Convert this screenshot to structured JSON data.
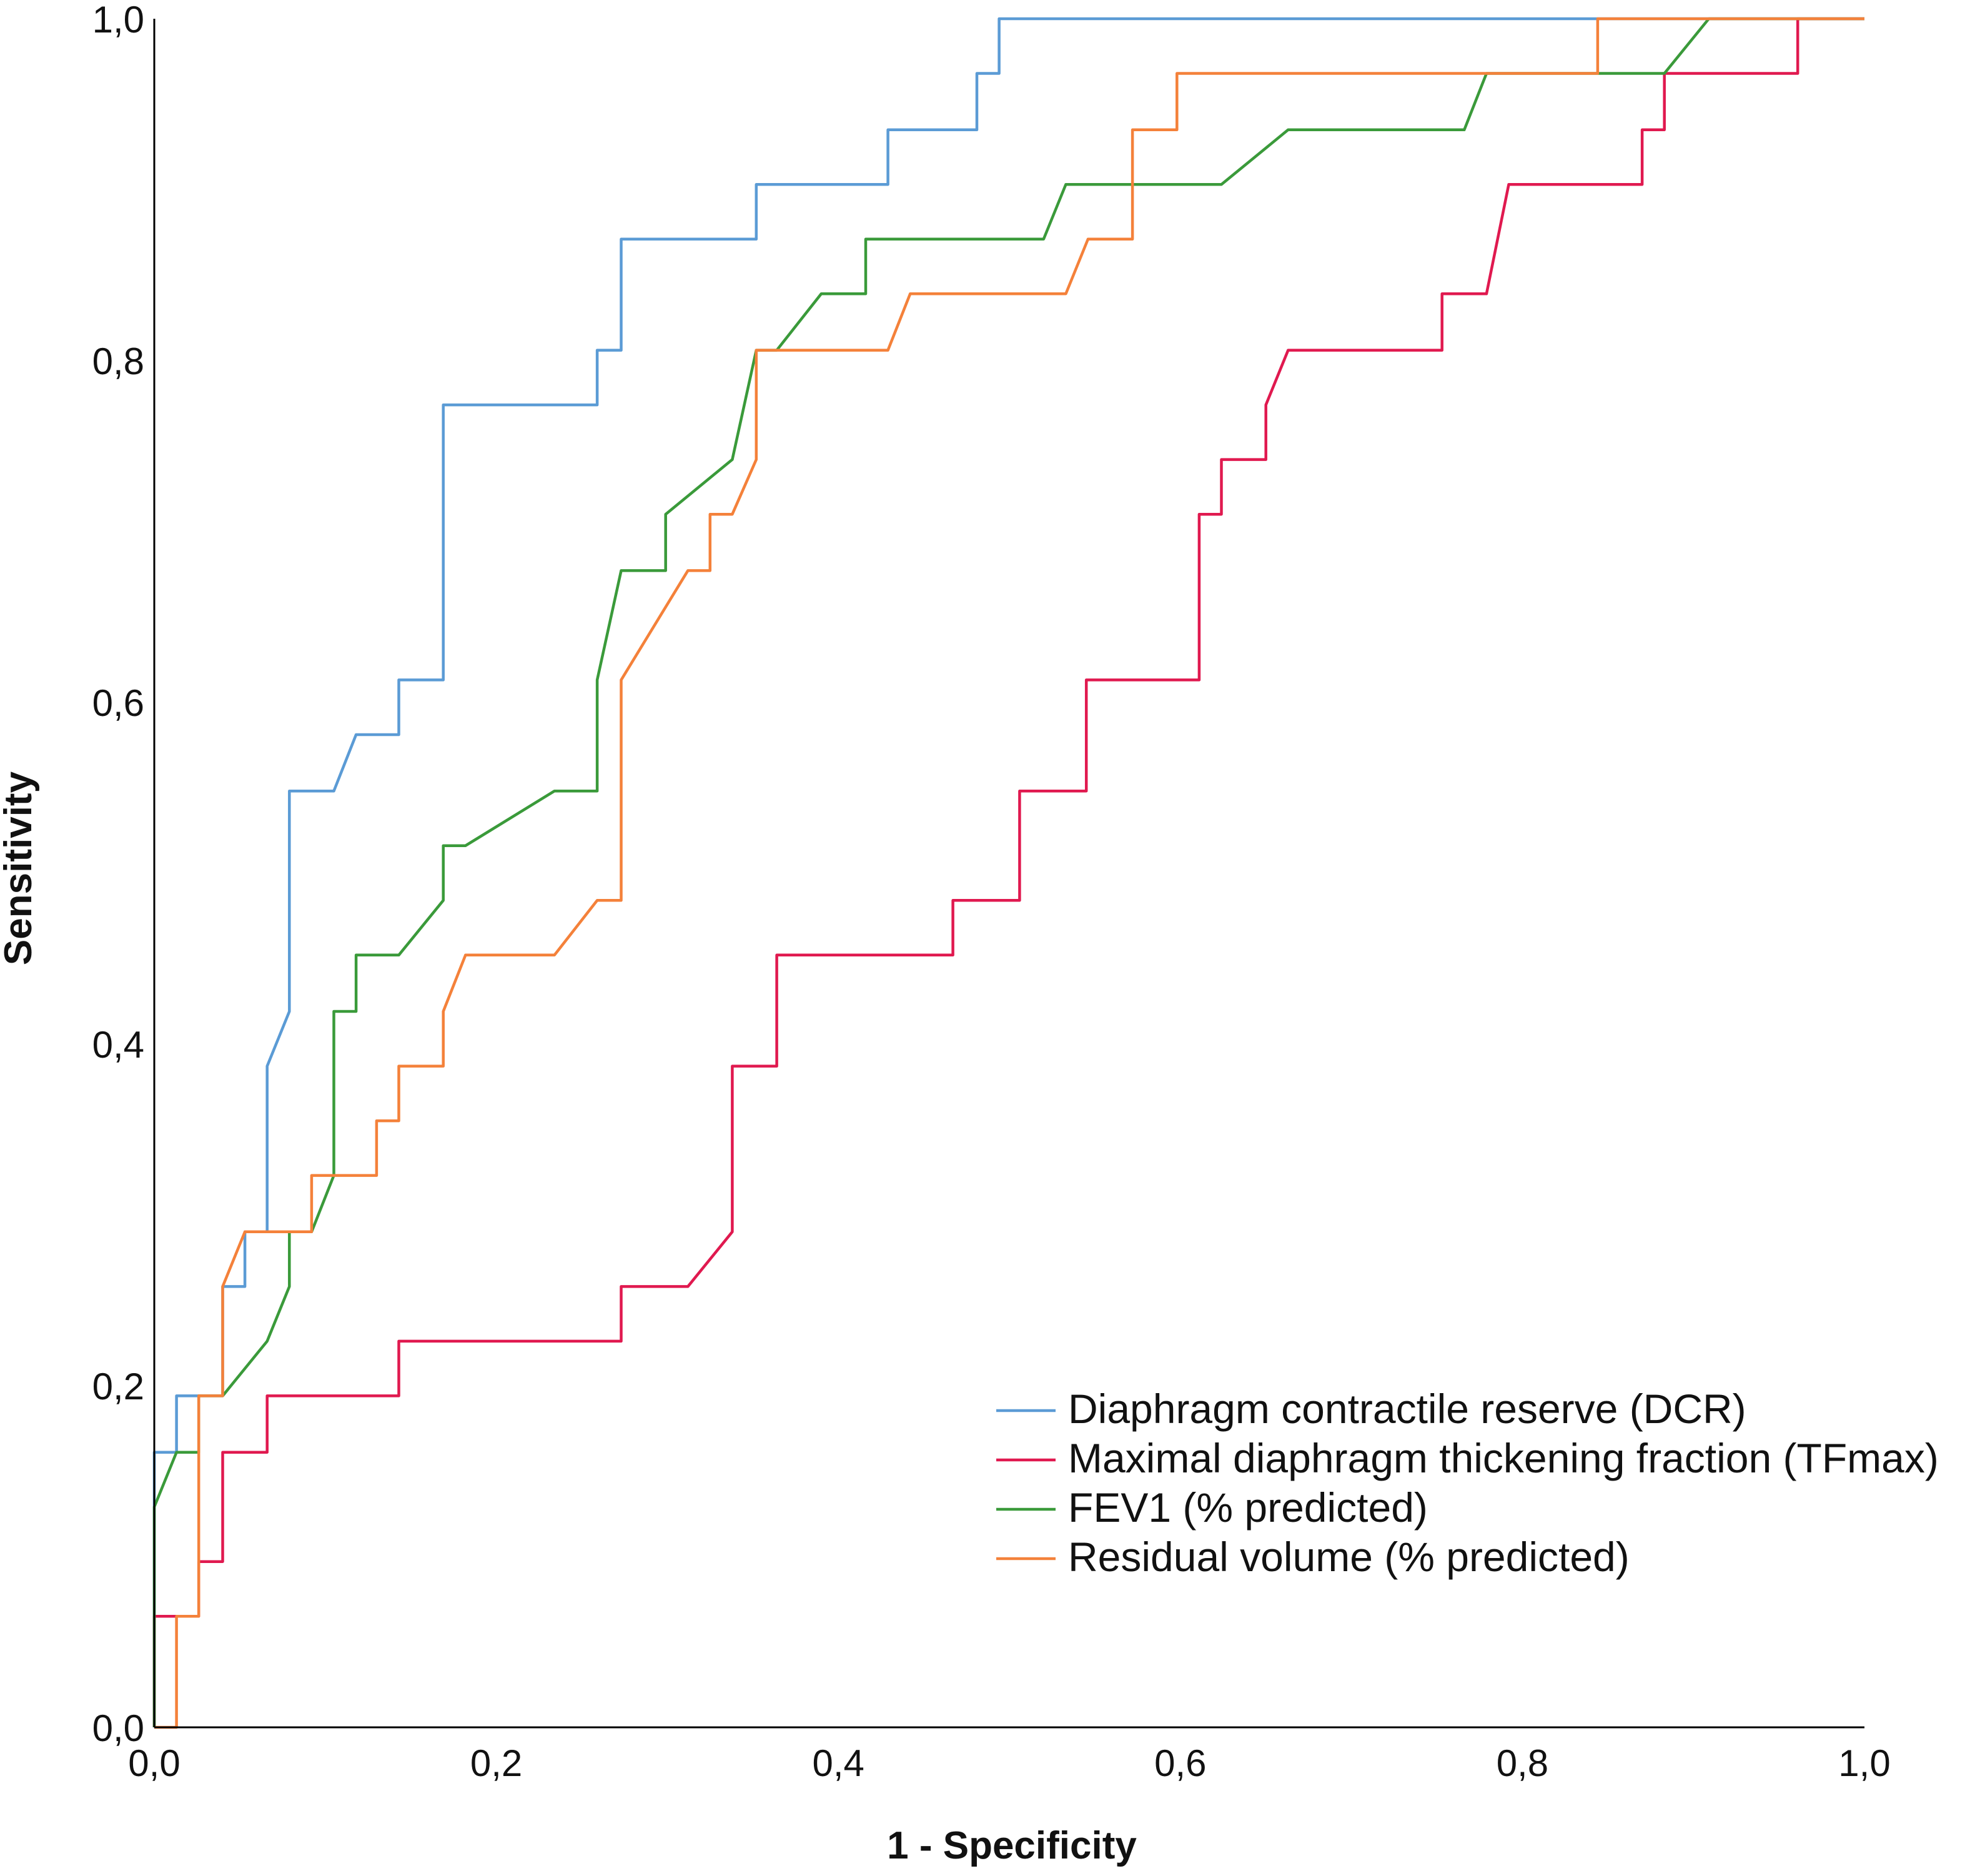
{
  "chart_data": {
    "type": "line",
    "title": "",
    "xlabel": "1 - Specificity",
    "ylabel": "Sensitivity",
    "xlim": [
      0,
      1
    ],
    "ylim": [
      0,
      1
    ],
    "grid": false,
    "legend_position": "bottom-right",
    "x_ticks": [
      "0,0",
      "0,2",
      "0,4",
      "0,6",
      "0,8",
      "1,0"
    ],
    "y_ticks": [
      "0,0",
      "0,2",
      "0,4",
      "0,6",
      "0,8",
      "1,0"
    ],
    "series": [
      {
        "name": "Diaphragm contractile reserve (DCR)",
        "color": "#5b9bd5",
        "points": [
          [
            0,
            0
          ],
          [
            0,
            0.161
          ],
          [
            0.013,
            0.161
          ],
          [
            0.013,
            0.194
          ],
          [
            0.04,
            0.194
          ],
          [
            0.04,
            0.258
          ],
          [
            0.053,
            0.258
          ],
          [
            0.053,
            0.29
          ],
          [
            0.066,
            0.29
          ],
          [
            0.066,
            0.387
          ],
          [
            0.079,
            0.419
          ],
          [
            0.079,
            0.548
          ],
          [
            0.105,
            0.548
          ],
          [
            0.118,
            0.581
          ],
          [
            0.143,
            0.581
          ],
          [
            0.143,
            0.613
          ],
          [
            0.169,
            0.613
          ],
          [
            0.169,
            0.774
          ],
          [
            0.259,
            0.774
          ],
          [
            0.259,
            0.806
          ],
          [
            0.273,
            0.806
          ],
          [
            0.273,
            0.871
          ],
          [
            0.352,
            0.871
          ],
          [
            0.352,
            0.903
          ],
          [
            0.429,
            0.903
          ],
          [
            0.429,
            0.935
          ],
          [
            0.481,
            0.935
          ],
          [
            0.481,
            0.968
          ],
          [
            0.494,
            0.968
          ],
          [
            0.494,
            1.0
          ],
          [
            1.0,
            1.0
          ]
        ]
      },
      {
        "name": "Maximal diaphragm thickening fraction (TFmax)",
        "color": "#e0194f",
        "points": [
          [
            0,
            0
          ],
          [
            0,
            0.065
          ],
          [
            0.026,
            0.065
          ],
          [
            0.026,
            0.097
          ],
          [
            0.04,
            0.097
          ],
          [
            0.04,
            0.161
          ],
          [
            0.066,
            0.161
          ],
          [
            0.066,
            0.194
          ],
          [
            0.143,
            0.194
          ],
          [
            0.143,
            0.226
          ],
          [
            0.273,
            0.226
          ],
          [
            0.273,
            0.258
          ],
          [
            0.312,
            0.258
          ],
          [
            0.338,
            0.29
          ],
          [
            0.338,
            0.387
          ],
          [
            0.364,
            0.387
          ],
          [
            0.364,
            0.452
          ],
          [
            0.467,
            0.452
          ],
          [
            0.467,
            0.484
          ],
          [
            0.506,
            0.484
          ],
          [
            0.506,
            0.548
          ],
          [
            0.545,
            0.548
          ],
          [
            0.545,
            0.613
          ],
          [
            0.611,
            0.613
          ],
          [
            0.611,
            0.71
          ],
          [
            0.624,
            0.71
          ],
          [
            0.624,
            0.742
          ],
          [
            0.65,
            0.742
          ],
          [
            0.65,
            0.774
          ],
          [
            0.663,
            0.806
          ],
          [
            0.753,
            0.806
          ],
          [
            0.753,
            0.839
          ],
          [
            0.779,
            0.839
          ],
          [
            0.792,
            0.903
          ],
          [
            0.87,
            0.903
          ],
          [
            0.87,
            0.935
          ],
          [
            0.883,
            0.935
          ],
          [
            0.883,
            0.968
          ],
          [
            0.961,
            0.968
          ],
          [
            0.961,
            1.0
          ],
          [
            1.0,
            1.0
          ]
        ]
      },
      {
        "name": "FEV1 (% predicted)",
        "color": "#3a9a3a",
        "points": [
          [
            0,
            0
          ],
          [
            0,
            0.129
          ],
          [
            0.013,
            0.161
          ],
          [
            0.026,
            0.161
          ],
          [
            0.026,
            0.194
          ],
          [
            0.04,
            0.194
          ],
          [
            0.066,
            0.226
          ],
          [
            0.079,
            0.258
          ],
          [
            0.079,
            0.29
          ],
          [
            0.092,
            0.29
          ],
          [
            0.105,
            0.323
          ],
          [
            0.105,
            0.419
          ],
          [
            0.118,
            0.419
          ],
          [
            0.118,
            0.452
          ],
          [
            0.143,
            0.452
          ],
          [
            0.169,
            0.484
          ],
          [
            0.169,
            0.516
          ],
          [
            0.182,
            0.516
          ],
          [
            0.234,
            0.548
          ],
          [
            0.259,
            0.548
          ],
          [
            0.259,
            0.613
          ],
          [
            0.273,
            0.677
          ],
          [
            0.299,
            0.677
          ],
          [
            0.299,
            0.71
          ],
          [
            0.338,
            0.742
          ],
          [
            0.352,
            0.806
          ],
          [
            0.364,
            0.806
          ],
          [
            0.39,
            0.839
          ],
          [
            0.416,
            0.839
          ],
          [
            0.416,
            0.871
          ],
          [
            0.52,
            0.871
          ],
          [
            0.533,
            0.903
          ],
          [
            0.624,
            0.903
          ],
          [
            0.663,
            0.935
          ],
          [
            0.766,
            0.935
          ],
          [
            0.779,
            0.968
          ],
          [
            0.883,
            0.968
          ],
          [
            0.909,
            1.0
          ],
          [
            1.0,
            1.0
          ]
        ]
      },
      {
        "name": "Residual volume (% predicted)",
        "color": "#f4813a",
        "points": [
          [
            0,
            0
          ],
          [
            0.013,
            0
          ],
          [
            0.013,
            0.065
          ],
          [
            0.026,
            0.065
          ],
          [
            0.026,
            0.194
          ],
          [
            0.04,
            0.194
          ],
          [
            0.04,
            0.258
          ],
          [
            0.053,
            0.29
          ],
          [
            0.092,
            0.29
          ],
          [
            0.092,
            0.323
          ],
          [
            0.13,
            0.323
          ],
          [
            0.13,
            0.355
          ],
          [
            0.143,
            0.355
          ],
          [
            0.143,
            0.387
          ],
          [
            0.169,
            0.387
          ],
          [
            0.169,
            0.419
          ],
          [
            0.182,
            0.452
          ],
          [
            0.234,
            0.452
          ],
          [
            0.259,
            0.484
          ],
          [
            0.273,
            0.484
          ],
          [
            0.273,
            0.613
          ],
          [
            0.312,
            0.677
          ],
          [
            0.325,
            0.677
          ],
          [
            0.325,
            0.71
          ],
          [
            0.338,
            0.71
          ],
          [
            0.352,
            0.742
          ],
          [
            0.352,
            0.806
          ],
          [
            0.429,
            0.806
          ],
          [
            0.442,
            0.839
          ],
          [
            0.533,
            0.839
          ],
          [
            0.546,
            0.871
          ],
          [
            0.572,
            0.871
          ],
          [
            0.572,
            0.935
          ],
          [
            0.598,
            0.935
          ],
          [
            0.598,
            0.968
          ],
          [
            0.844,
            0.968
          ],
          [
            0.844,
            1.0
          ],
          [
            1.0,
            1.0
          ]
        ]
      }
    ]
  }
}
